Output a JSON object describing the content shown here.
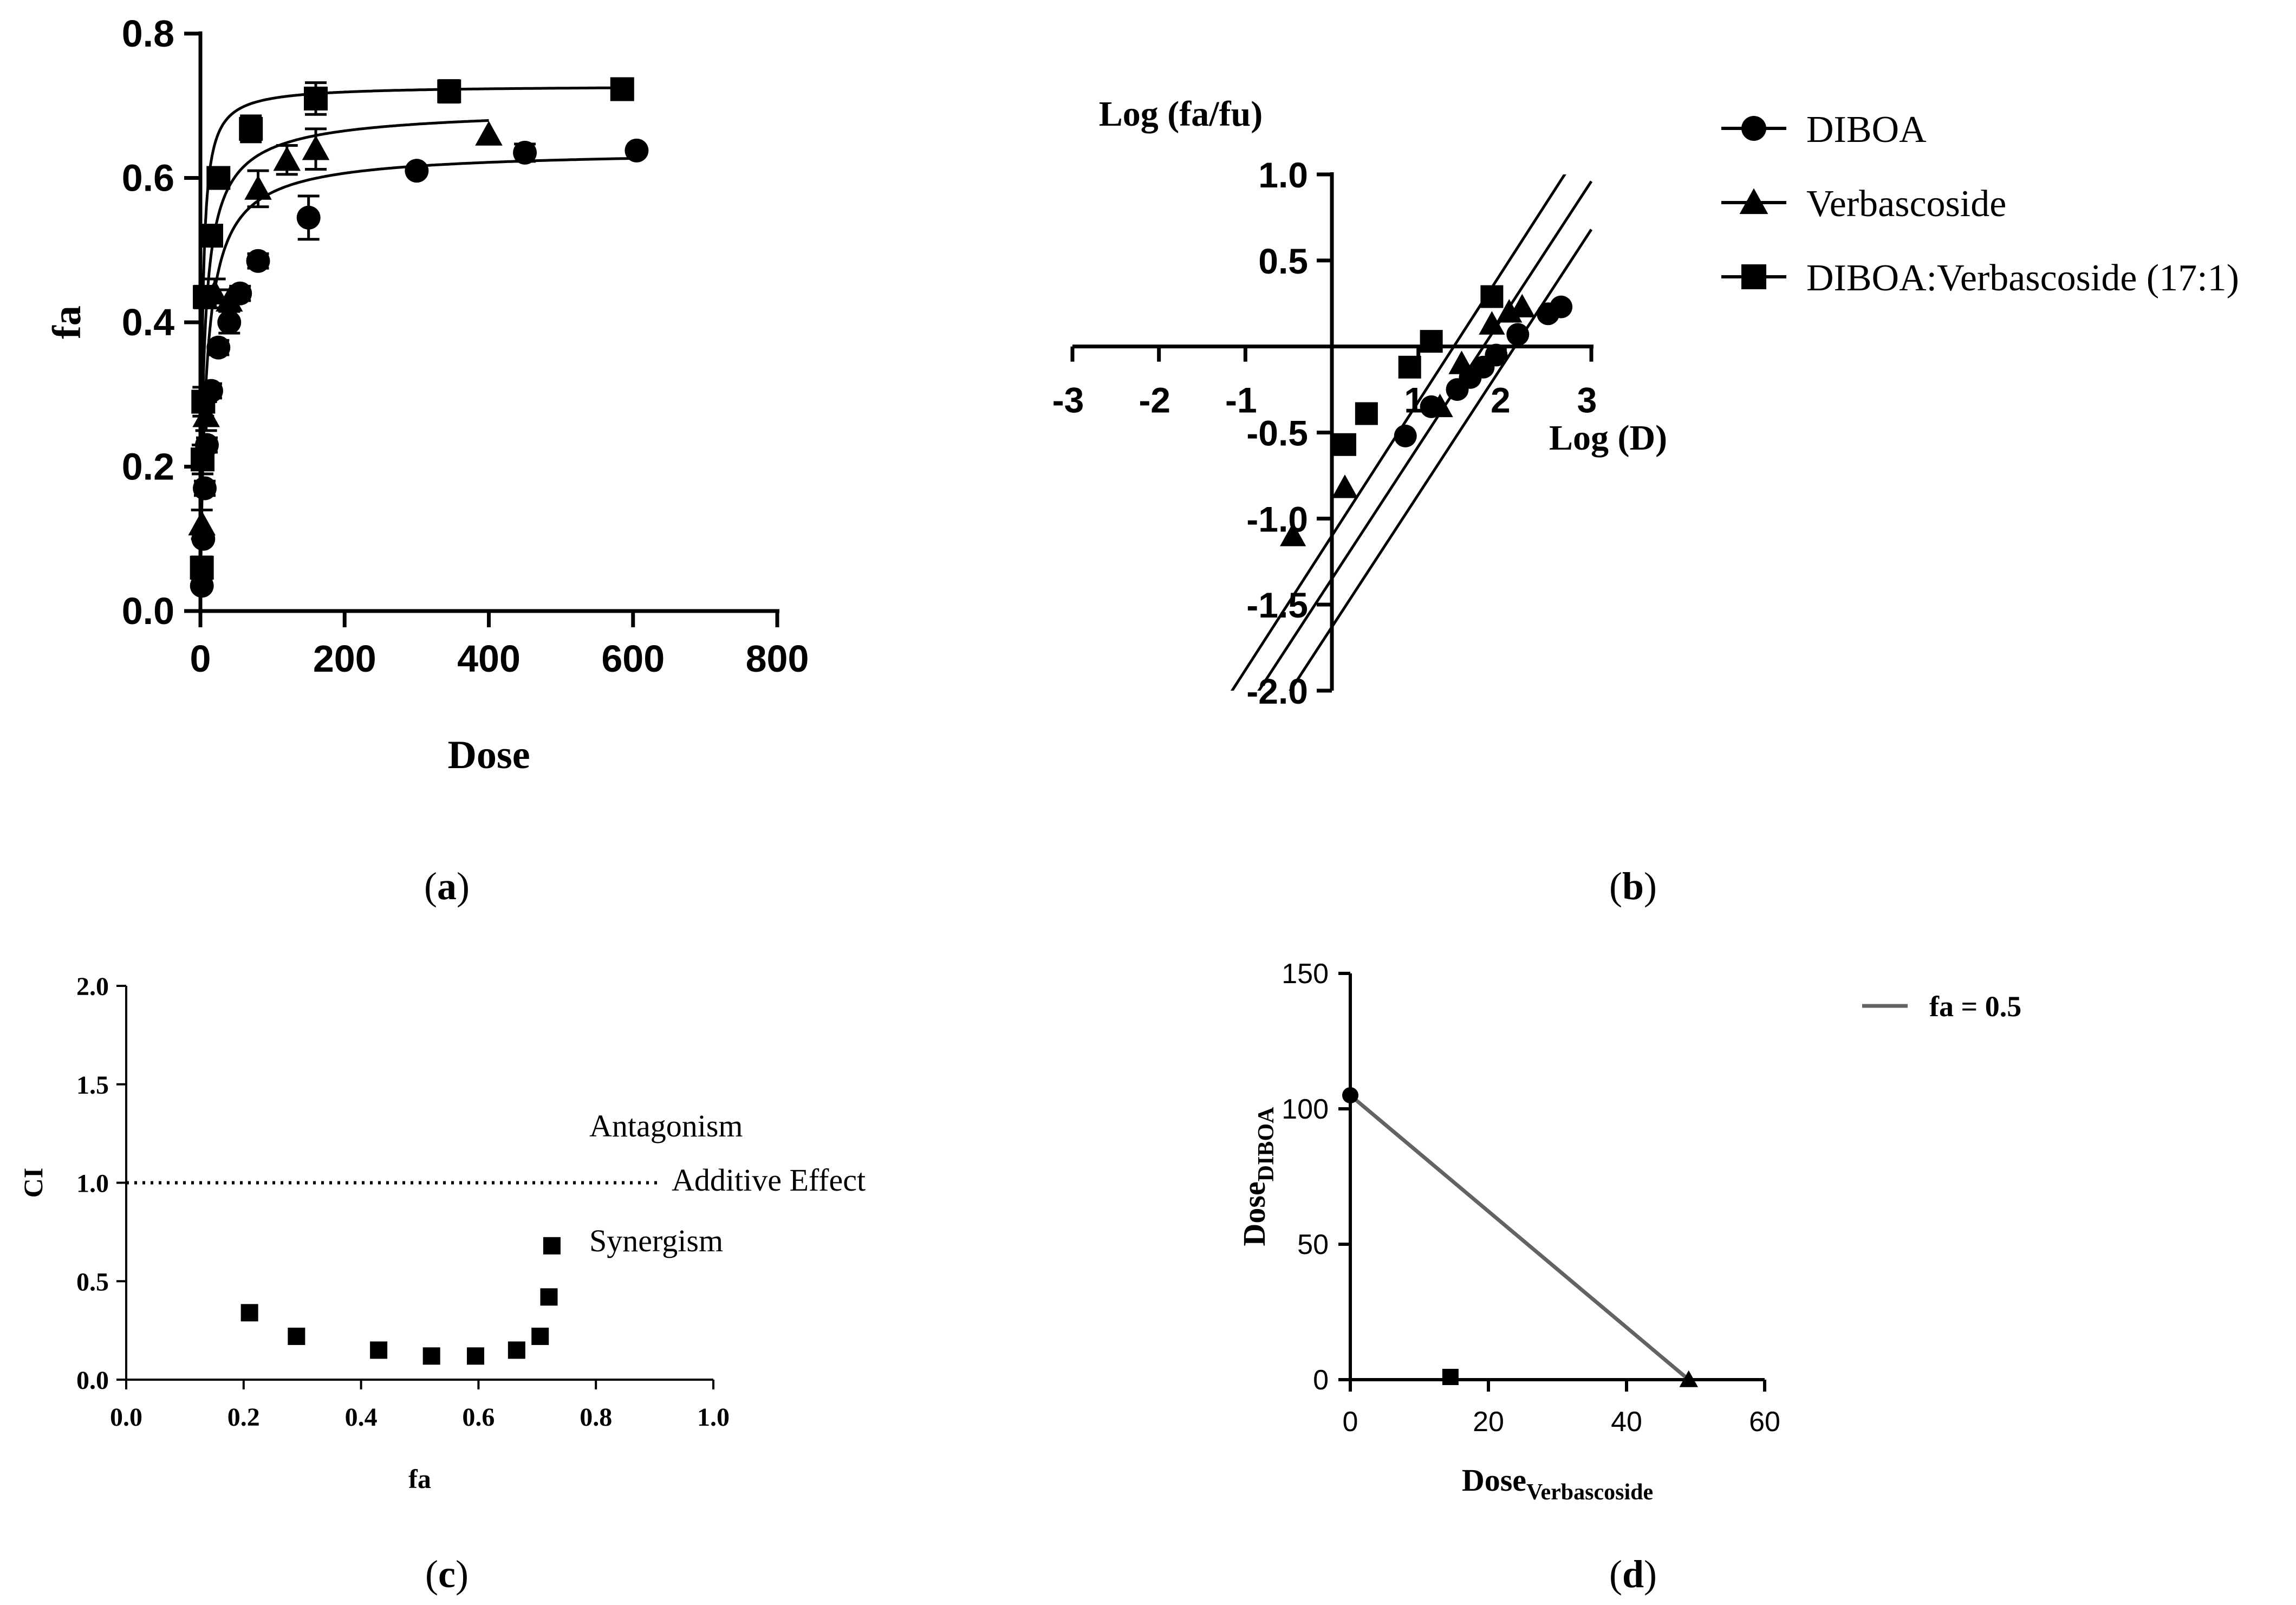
{
  "panel_labels": [
    "(a)",
    "(b)",
    "(c)",
    "(d)"
  ],
  "legend_b": {
    "entries": [
      {
        "label": "DIBOA",
        "marker": "circle"
      },
      {
        "label": "Verbascoside",
        "marker": "triangle"
      },
      {
        "label": "DIBOA:Verbascoside (17:1)",
        "marker": "square"
      }
    ]
  },
  "legend_d": {
    "label": "fa = 0.5",
    "color": "#636363"
  },
  "chart_data": [
    {
      "panel": "a",
      "type": "scatter",
      "xlabel": "Dose",
      "ylabel": "fa",
      "xlim": [
        0,
        800
      ],
      "ylim": [
        0,
        0.8
      ],
      "xticks": [
        "0",
        "200",
        "400",
        "600",
        "800"
      ],
      "yticks": [
        "0.0",
        "0.2",
        "0.4",
        "0.6",
        "0.8"
      ],
      "series": [
        {
          "name": "DIBOA",
          "marker": "circle",
          "points": [
            [
              2,
              0.035
            ],
            [
              4,
              0.1
            ],
            [
              6,
              0.17
            ],
            [
              9,
              0.23
            ],
            [
              15,
              0.305
            ],
            [
              25,
              0.365
            ],
            [
              40,
              0.4
            ],
            [
              55,
              0.44
            ],
            [
              80,
              0.485
            ],
            [
              150,
              0.545
            ],
            [
              300,
              0.61
            ],
            [
              450,
              0.635
            ],
            [
              605,
              0.638
            ]
          ],
          "errors": [
            0,
            0,
            0.01,
            0.01,
            0.01,
            0.01,
            0.015,
            0.01,
            0.01,
            0.03,
            0,
            0.012,
            0
          ],
          "fit": {
            "fa_max": 0.64,
            "dm": 8,
            "m": 0.9,
            "x_end": 605
          }
        },
        {
          "name": "Verbascoside",
          "marker": "triangle",
          "points": [
            [
              2,
              0.12
            ],
            [
              8,
              0.27
            ],
            [
              20,
              0.44
            ],
            [
              40,
              0.43
            ],
            [
              80,
              0.585
            ],
            [
              120,
              0.625
            ],
            [
              160,
              0.64
            ],
            [
              400,
              0.66
            ]
          ],
          "errors": [
            0.02,
            0.02,
            0.02,
            0.015,
            0.025,
            0.02,
            0.028,
            0
          ],
          "fit": {
            "fa_max": 0.7,
            "dm": 5,
            "m": 0.8,
            "x_end": 400
          }
        },
        {
          "name": "DIBOA:Verbascoside (17:1)",
          "marker": "square",
          "points": [
            [
              2,
              0.06
            ],
            [
              3,
              0.21
            ],
            [
              4,
              0.29
            ],
            [
              6,
              0.435
            ],
            [
              15,
              0.52
            ],
            [
              25,
              0.6
            ],
            [
              70,
              0.668
            ],
            [
              160,
              0.71
            ],
            [
              345,
              0.72
            ],
            [
              585,
              0.723
            ]
          ],
          "errors": [
            0.015,
            0.02,
            0.02,
            0.015,
            0.01,
            0.01,
            0.018,
            0.022,
            0.015,
            0
          ],
          "fit": {
            "fa_max": 0.728,
            "dm": 2.5,
            "m": 1.0,
            "x_end": 585
          }
        }
      ]
    },
    {
      "panel": "b",
      "type": "scatter",
      "xlabel": "Log (D)",
      "ylabel": "Log (fa/fu)",
      "xlim": [
        -3,
        3
      ],
      "ylim": [
        -2.0,
        1.0
      ],
      "xticks": [
        "-3",
        "-2",
        "-1",
        "1",
        "2",
        "3"
      ],
      "yticks": [
        "1.0",
        "0.5",
        "-0.5",
        "-1.0",
        "-1.5",
        "-2.0"
      ],
      "series": [
        {
          "name": "DIBOA",
          "marker": "circle",
          "points": [
            [
              0.85,
              -0.52
            ],
            [
              1.15,
              -0.35
            ],
            [
              1.45,
              -0.25
            ],
            [
              1.6,
              -0.18
            ],
            [
              1.75,
              -0.12
            ],
            [
              1.9,
              -0.05
            ],
            [
              2.15,
              0.07
            ],
            [
              2.5,
              0.19
            ],
            [
              2.65,
              0.23
            ]
          ],
          "line": {
            "slope": 0.77,
            "intercept": -1.63
          }
        },
        {
          "name": "Verbascoside",
          "marker": "triangle",
          "points": [
            [
              -0.45,
              -1.1
            ],
            [
              0.15,
              -0.82
            ],
            [
              1.25,
              -0.35
            ],
            [
              1.5,
              -0.1
            ],
            [
              1.85,
              0.13
            ],
            [
              2.05,
              0.2
            ],
            [
              2.2,
              0.23
            ]
          ],
          "line": {
            "slope": 0.77,
            "intercept": -1.35
          }
        },
        {
          "name": "DIBOA:Verbascoside (17:1)",
          "marker": "square",
          "points": [
            [
              0.15,
              -0.57
            ],
            [
              0.4,
              -0.39
            ],
            [
              0.9,
              -0.12
            ],
            [
              1.15,
              0.03
            ],
            [
              1.85,
              0.29
            ]
          ],
          "line": {
            "slope": 0.78,
            "intercept": -1.1
          }
        }
      ]
    },
    {
      "panel": "c",
      "type": "scatter",
      "xlabel": "fa",
      "ylabel": "CI",
      "xlim": [
        0,
        1.0
      ],
      "ylim": [
        0,
        2.0
      ],
      "xticks": [
        "0.0",
        "0.2",
        "0.4",
        "0.6",
        "0.8",
        "1.0"
      ],
      "yticks": [
        "0.0",
        "0.5",
        "1.0",
        "1.5",
        "2.0"
      ],
      "reference_line": 1.0,
      "annotations": [
        "Antagonism",
        "Additive Effect",
        "Synergism"
      ],
      "series": [
        {
          "name": "DIBOA:Verbascoside (17:1)",
          "marker": "square",
          "points": [
            [
              0.21,
              0.34
            ],
            [
              0.29,
              0.22
            ],
            [
              0.43,
              0.15
            ],
            [
              0.52,
              0.12
            ],
            [
              0.595,
              0.12
            ],
            [
              0.665,
              0.15
            ],
            [
              0.705,
              0.22
            ],
            [
              0.72,
              0.42
            ],
            [
              0.725,
              0.68
            ]
          ]
        }
      ]
    },
    {
      "panel": "d",
      "type": "line",
      "xlabel": "Dose",
      "xlabel_sub": "Verbascoside",
      "ylabel": "Dose",
      "ylabel_sub": "DIBOA",
      "xlim": [
        0,
        60
      ],
      "ylim": [
        0,
        150
      ],
      "xticks": [
        "0",
        "20",
        "40",
        "60"
      ],
      "yticks": [
        "0",
        "50",
        "100",
        "150"
      ],
      "series": [
        {
          "name": "fa = 0.5",
          "points": [
            [
              0,
              105
            ],
            [
              49,
              0
            ]
          ]
        }
      ],
      "markers": [
        {
          "name": "DIBOA",
          "marker": "circle",
          "x": 0,
          "y": 105
        },
        {
          "name": "Verbascoside",
          "marker": "triangle",
          "x": 49,
          "y": 0
        },
        {
          "name": "DIBOA:Verbascoside (17:1)",
          "marker": "square",
          "x": 14.5,
          "y": 1
        }
      ]
    }
  ]
}
